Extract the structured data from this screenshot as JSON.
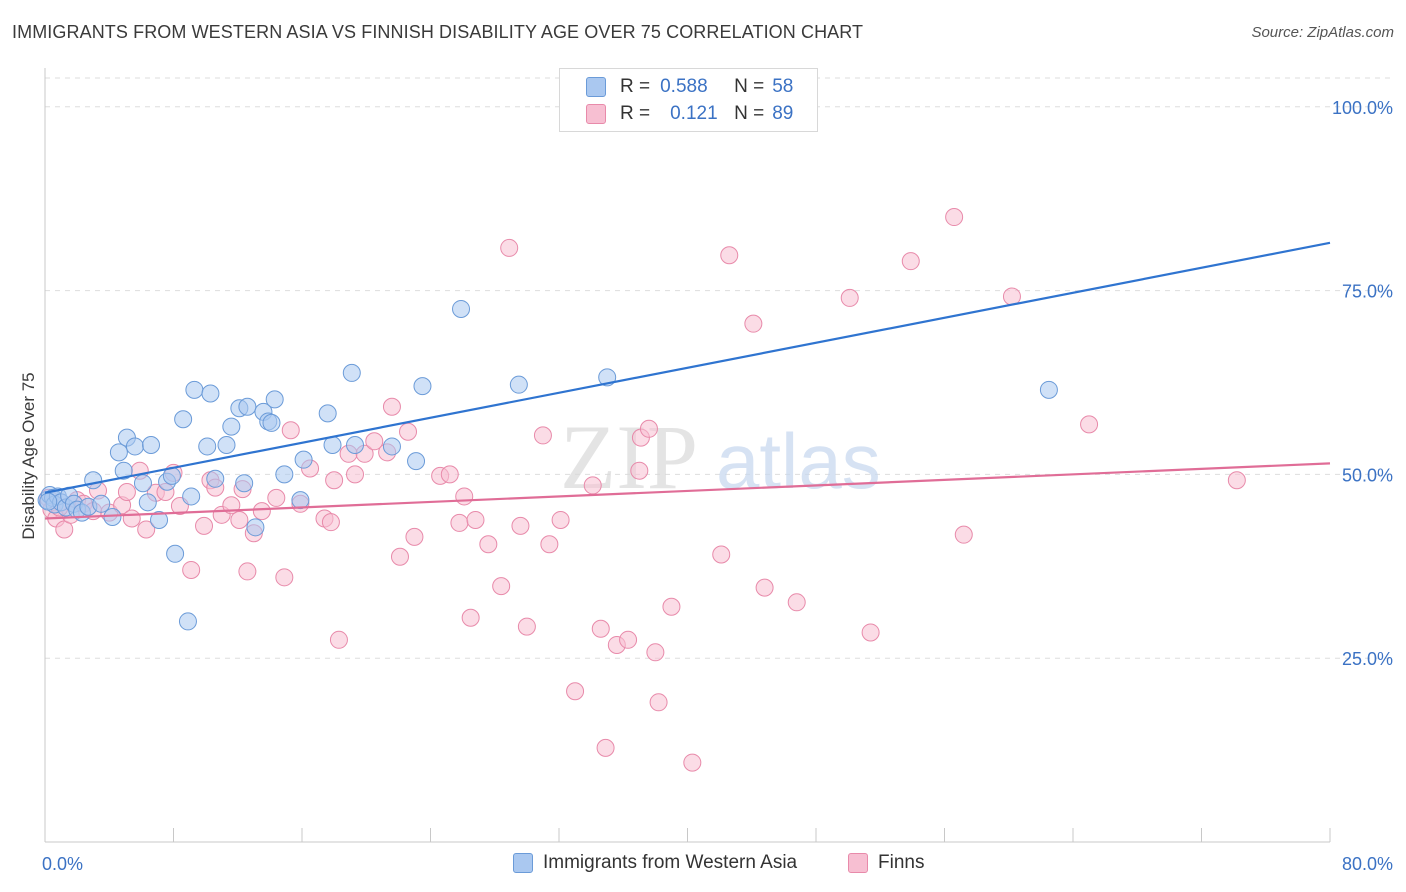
{
  "header": {
    "title": "IMMIGRANTS FROM WESTERN ASIA VS FINNISH DISABILITY AGE OVER 75 CORRELATION CHART",
    "source": "Source: ZipAtlas.com"
  },
  "colors": {
    "blue_fill": "#aac8f0",
    "blue_stroke": "#6b9bd8",
    "blue_line": "#2f74d0",
    "pink_fill": "#f7bfd2",
    "pink_stroke": "#e88aaa",
    "pink_line": "#e06d97",
    "grid": "#dddddd",
    "tick_text": "#3b72c4"
  },
  "legend": {
    "rows": [
      {
        "r_label": "R =",
        "r_value": "0.588",
        "n_label": "N =",
        "n_value": "58"
      },
      {
        "r_label": "R =",
        "r_value": "0.121",
        "n_label": "N =",
        "n_value": "89"
      }
    ]
  },
  "bottom_legend": {
    "series1": "Immigrants from Western Asia",
    "series2": "Finns"
  },
  "watermark": {
    "zip": "ZIP",
    "atlas": "atlas"
  },
  "chart_data": {
    "type": "scatter",
    "title": "IMMIGRANTS FROM WESTERN ASIA VS FINNISH DISABILITY AGE OVER 75 CORRELATION CHART",
    "ylabel": "Disability Age Over 75",
    "xlabel": "",
    "xlim": [
      0,
      80
    ],
    "ylim": [
      0,
      105
    ],
    "x_tick_labels": [
      "0.0%",
      "80.0%"
    ],
    "y_ticks": [
      25,
      50,
      75,
      100
    ],
    "y_tick_labels": [
      "25.0%",
      "50.0%",
      "75.0%",
      "100.0%"
    ],
    "grid": true,
    "series": [
      {
        "name": "Immigrants from Western Asia",
        "color": "blue",
        "R": 0.588,
        "N": 58,
        "trend": {
          "x": [
            0,
            80
          ],
          "y": [
            47.5,
            81.5
          ]
        },
        "points": [
          [
            0.1,
            46.5
          ],
          [
            0.3,
            47.2
          ],
          [
            0.5,
            46.8
          ],
          [
            0.6,
            45.9
          ],
          [
            0.8,
            47.0
          ],
          [
            1.0,
            46.2
          ],
          [
            1.3,
            45.5
          ],
          [
            1.5,
            47.1
          ],
          [
            1.8,
            46.0
          ],
          [
            2.0,
            45.2
          ],
          [
            2.3,
            44.8
          ],
          [
            2.7,
            45.6
          ],
          [
            3.0,
            49.2
          ],
          [
            3.5,
            46.0
          ],
          [
            4.2,
            44.2
          ],
          [
            4.6,
            53.0
          ],
          [
            4.9,
            50.5
          ],
          [
            5.1,
            55.0
          ],
          [
            5.6,
            53.8
          ],
          [
            6.1,
            48.8
          ],
          [
            6.4,
            46.2
          ],
          [
            6.6,
            54.0
          ],
          [
            7.1,
            43.8
          ],
          [
            7.6,
            49.0
          ],
          [
            7.9,
            49.8
          ],
          [
            8.1,
            39.2
          ],
          [
            8.6,
            57.5
          ],
          [
            8.9,
            30.0
          ],
          [
            9.1,
            47.0
          ],
          [
            9.3,
            61.5
          ],
          [
            10.1,
            53.8
          ],
          [
            10.3,
            61.0
          ],
          [
            10.6,
            49.4
          ],
          [
            11.3,
            54.0
          ],
          [
            11.6,
            56.5
          ],
          [
            12.1,
            59.0
          ],
          [
            12.4,
            48.8
          ],
          [
            12.6,
            59.2
          ],
          [
            13.1,
            42.8
          ],
          [
            13.6,
            58.5
          ],
          [
            13.9,
            57.2
          ],
          [
            14.1,
            57.0
          ],
          [
            14.3,
            60.2
          ],
          [
            14.9,
            50.0
          ],
          [
            15.9,
            46.5
          ],
          [
            16.1,
            52.0
          ],
          [
            17.6,
            58.3
          ],
          [
            17.9,
            54.0
          ],
          [
            19.1,
            63.8
          ],
          [
            19.3,
            54.0
          ],
          [
            21.6,
            53.8
          ],
          [
            23.1,
            51.8
          ],
          [
            23.5,
            62.0
          ],
          [
            25.9,
            72.5
          ],
          [
            29.5,
            62.2
          ],
          [
            35.0,
            63.2
          ],
          [
            62.5,
            61.5
          ],
          [
            0.2,
            46.3
          ]
        ]
      },
      {
        "name": "Finns",
        "color": "pink",
        "R": 0.121,
        "N": 89,
        "trend": {
          "x": [
            0,
            80
          ],
          "y": [
            44.0,
            51.5
          ]
        },
        "points": [
          [
            0.2,
            46.8
          ],
          [
            0.4,
            45.2
          ],
          [
            0.7,
            44.0
          ],
          [
            1.2,
            42.5
          ],
          [
            1.6,
            44.5
          ],
          [
            2.0,
            46.5
          ],
          [
            2.4,
            46.0
          ],
          [
            3.0,
            45.0
          ],
          [
            3.3,
            47.8
          ],
          [
            4.0,
            44.8
          ],
          [
            4.8,
            45.8
          ],
          [
            5.1,
            47.6
          ],
          [
            5.4,
            44.0
          ],
          [
            5.9,
            50.5
          ],
          [
            6.3,
            42.5
          ],
          [
            6.9,
            47.5
          ],
          [
            7.5,
            47.6
          ],
          [
            8.0,
            50.2
          ],
          [
            8.4,
            45.7
          ],
          [
            9.1,
            37.0
          ],
          [
            9.9,
            43.0
          ],
          [
            10.3,
            49.2
          ],
          [
            10.6,
            48.2
          ],
          [
            11.0,
            44.5
          ],
          [
            11.6,
            45.8
          ],
          [
            12.1,
            43.8
          ],
          [
            12.3,
            48.0
          ],
          [
            12.6,
            36.8
          ],
          [
            13.0,
            42.0
          ],
          [
            13.5,
            45.0
          ],
          [
            14.4,
            46.8
          ],
          [
            14.9,
            36.0
          ],
          [
            15.3,
            56.0
          ],
          [
            15.9,
            46.0
          ],
          [
            16.5,
            50.8
          ],
          [
            17.4,
            44.0
          ],
          [
            17.8,
            43.5
          ],
          [
            18.0,
            49.2
          ],
          [
            18.3,
            27.5
          ],
          [
            18.9,
            52.8
          ],
          [
            19.3,
            50.0
          ],
          [
            19.9,
            52.8
          ],
          [
            20.5,
            54.5
          ],
          [
            21.3,
            53.0
          ],
          [
            21.6,
            59.2
          ],
          [
            22.1,
            38.8
          ],
          [
            22.6,
            55.8
          ],
          [
            23.0,
            41.5
          ],
          [
            24.6,
            49.8
          ],
          [
            25.2,
            50.0
          ],
          [
            25.8,
            43.4
          ],
          [
            26.1,
            47.0
          ],
          [
            26.5,
            30.5
          ],
          [
            26.8,
            43.8
          ],
          [
            27.6,
            40.5
          ],
          [
            28.4,
            34.8
          ],
          [
            28.9,
            80.8
          ],
          [
            29.6,
            43.0
          ],
          [
            30.0,
            29.3
          ],
          [
            31.0,
            55.3
          ],
          [
            31.4,
            40.5
          ],
          [
            32.1,
            43.8
          ],
          [
            33.0,
            20.5
          ],
          [
            34.1,
            48.5
          ],
          [
            34.6,
            29.0
          ],
          [
            34.9,
            12.8
          ],
          [
            35.6,
            26.8
          ],
          [
            36.3,
            27.5
          ],
          [
            37.1,
            55.0
          ],
          [
            37.6,
            56.2
          ],
          [
            37.0,
            50.5
          ],
          [
            38.0,
            25.8
          ],
          [
            38.2,
            19.0
          ],
          [
            39.0,
            32.0
          ],
          [
            40.3,
            10.8
          ],
          [
            42.1,
            39.1
          ],
          [
            42.6,
            79.8
          ],
          [
            44.1,
            70.5
          ],
          [
            44.8,
            34.6
          ],
          [
            46.8,
            32.6
          ],
          [
            50.1,
            74.0
          ],
          [
            51.4,
            28.5
          ],
          [
            53.9,
            79.0
          ],
          [
            56.6,
            85.0
          ],
          [
            57.2,
            41.8
          ],
          [
            60.2,
            74.2
          ],
          [
            65.0,
            56.8
          ],
          [
            74.2,
            49.2
          ],
          [
            0.9,
            45.5
          ]
        ]
      }
    ]
  }
}
